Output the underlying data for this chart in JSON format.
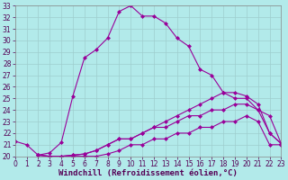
{
  "background_color": "#b2eaea",
  "line_color": "#990099",
  "xlabel": "Windchill (Refroidissement éolien,°C)",
  "xlim": [
    0,
    23
  ],
  "ylim": [
    20,
    33
  ],
  "xticks": [
    0,
    1,
    2,
    3,
    4,
    5,
    6,
    7,
    8,
    9,
    10,
    11,
    12,
    13,
    14,
    15,
    16,
    17,
    18,
    19,
    20,
    21,
    22,
    23
  ],
  "yticks": [
    20,
    21,
    22,
    23,
    24,
    25,
    26,
    27,
    28,
    29,
    30,
    31,
    32,
    33
  ],
  "curve1_x": [
    0,
    1,
    2,
    3,
    4,
    5,
    6,
    7,
    8,
    9,
    10,
    11,
    12,
    13,
    14,
    15,
    16,
    17,
    18,
    19,
    20,
    21,
    22,
    23
  ],
  "curve1_y": [
    21.3,
    21.0,
    20.1,
    20.3,
    21.2,
    25.2,
    28.5,
    29.2,
    30.2,
    32.5,
    33.0,
    32.1,
    32.1,
    31.5,
    30.2,
    29.5,
    27.5,
    27.0,
    25.5,
    25.0,
    25.0,
    24.0,
    23.5,
    21.1
  ],
  "curve2_x": [
    2,
    3,
    4,
    5,
    6,
    7,
    8,
    9,
    10,
    11,
    12,
    13,
    14,
    15,
    16,
    17,
    18,
    19,
    20,
    21,
    22,
    23
  ],
  "curve2_y": [
    20.1,
    20.0,
    20.0,
    20.1,
    20.2,
    20.5,
    21.0,
    21.5,
    21.5,
    22.0,
    22.5,
    23.0,
    23.5,
    24.0,
    24.5,
    25.0,
    25.5,
    25.5,
    25.2,
    24.5,
    22.0,
    21.1
  ],
  "curve3_x": [
    2,
    3,
    4,
    5,
    6,
    7,
    8,
    9,
    10,
    11,
    12,
    13,
    14,
    15,
    16,
    17,
    18,
    19,
    20,
    21,
    22,
    23
  ],
  "curve3_y": [
    20.1,
    20.0,
    20.0,
    20.1,
    20.2,
    20.5,
    21.0,
    21.5,
    21.5,
    22.0,
    22.5,
    22.5,
    23.0,
    23.5,
    23.5,
    24.0,
    24.0,
    24.5,
    24.5,
    24.0,
    22.0,
    21.1
  ],
  "curve4_x": [
    2,
    3,
    4,
    5,
    6,
    7,
    8,
    9,
    10,
    11,
    12,
    13,
    14,
    15,
    16,
    17,
    18,
    19,
    20,
    21,
    22,
    23
  ],
  "curve4_y": [
    20.1,
    20.0,
    20.0,
    20.0,
    20.0,
    20.0,
    20.2,
    20.5,
    21.0,
    21.0,
    21.5,
    21.5,
    22.0,
    22.0,
    22.5,
    22.5,
    23.0,
    23.0,
    23.5,
    23.0,
    21.0,
    21.0
  ],
  "marker": "D",
  "markersize": 2,
  "linewidth": 0.8,
  "grid_color": "#9ecece",
  "xlabel_fontsize": 6.5,
  "tick_fontsize": 5.5,
  "tick_color": "#550055"
}
